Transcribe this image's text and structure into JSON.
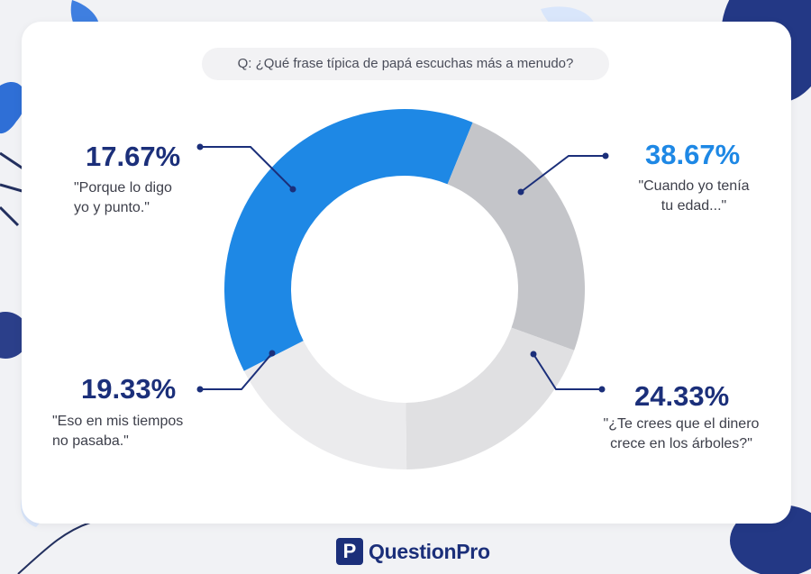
{
  "question": "Q: ¿Qué frase típica de papá escuchas más a menudo?",
  "brand": "QuestionPro",
  "colors": {
    "accent_blue": "#1e88e5",
    "navy": "#1b2f7a",
    "light_gray": "#ebebed",
    "mid_gray": "#e0e0e2",
    "dark_gray": "#c4c5c9"
  },
  "chart_data": {
    "type": "pie",
    "donut": true,
    "slices": [
      {
        "label": "\"Cuando yo tenía\ntu edad...\"",
        "value": 38.67,
        "display": "38.67%",
        "color": "#1e88e5",
        "pct_color": "#1e88e5"
      },
      {
        "label": "\"¿Te crees que el dinero\ncrece en los árboles?\"",
        "value": 24.33,
        "display": "24.33%",
        "color": "#c4c5c9",
        "pct_color": "#1b2f7a"
      },
      {
        "label": "\"Eso en mis tiempos\nno pasaba.\"",
        "value": 19.33,
        "display": "19.33%",
        "color": "#e0e0e2",
        "pct_color": "#1b2f7a"
      },
      {
        "label": "\"Porque lo digo\nyo y punto.\"",
        "value": 17.67,
        "display": "17.67%",
        "color": "#ebebed",
        "pct_color": "#1b2f7a"
      }
    ]
  }
}
